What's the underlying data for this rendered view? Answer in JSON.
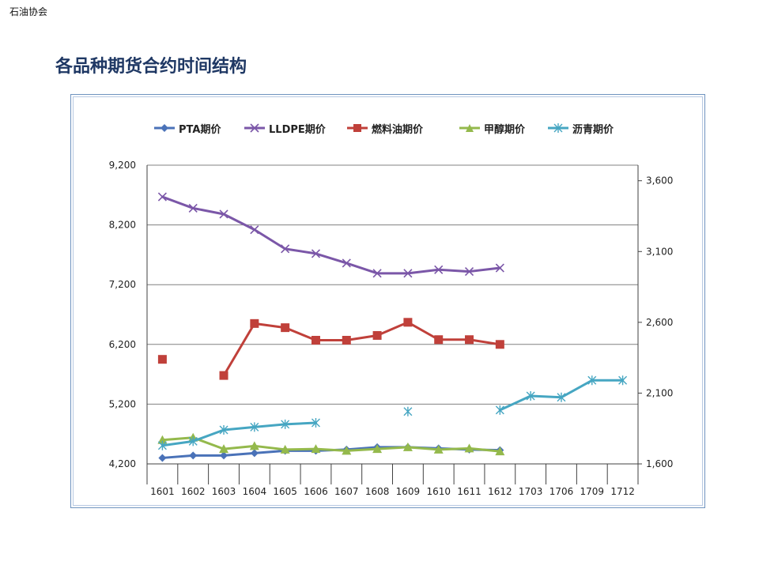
{
  "header": {
    "corner_label": "石油协会"
  },
  "slide": {
    "title": "各品种期货合约时间结构"
  },
  "colors": {
    "pta": "#4a72b8",
    "lldpe": "#7b57a8",
    "fuel_oil": "#c0403a",
    "methanol": "#94b94c",
    "asphalt": "#46a6c2",
    "gridline": "#808080",
    "axis": "#404040"
  },
  "chart_data": {
    "type": "line",
    "categories": [
      "1601",
      "1602",
      "1603",
      "1604",
      "1605",
      "1606",
      "1607",
      "1608",
      "1609",
      "1610",
      "1611",
      "1612",
      "1703",
      "1706",
      "1709",
      "1712"
    ],
    "y_left": {
      "ticks": [
        "4,200",
        "5,200",
        "6,200",
        "7,200",
        "8,200",
        "9,200"
      ],
      "min": 4200,
      "max": 9200,
      "step": 1000
    },
    "y_right": {
      "ticks": [
        "1,600",
        "2,100",
        "2,600",
        "3,100",
        "3,600"
      ],
      "min": 1600,
      "max": 3600,
      "step": 500,
      "display_max": 3710
    },
    "grid": "horizontal",
    "legend_position": "top",
    "series": [
      {
        "key": "pta",
        "name": "PTA期价",
        "axis": "left",
        "marker": "diamond",
        "values": [
          4300,
          4340,
          4340,
          4380,
          4420,
          4420,
          4440,
          4480,
          4480,
          4460,
          4440,
          4430,
          null,
          null,
          null,
          null
        ]
      },
      {
        "key": "lldpe",
        "name": "LLDPE期价",
        "axis": "left",
        "marker": "x",
        "values": [
          8670,
          8480,
          8380,
          8120,
          7800,
          7720,
          7560,
          7390,
          7390,
          7450,
          7420,
          7480,
          null,
          null,
          null,
          null
        ]
      },
      {
        "key": "fuel_oil",
        "name": "燃料油期价",
        "axis": "left",
        "marker": "square",
        "values": [
          5950,
          null,
          5680,
          6550,
          6480,
          6270,
          6270,
          6350,
          6570,
          6280,
          6280,
          6200,
          null,
          null,
          null,
          null
        ]
      },
      {
        "key": "methanol",
        "name": "甲醇期价",
        "axis": "left",
        "marker": "triangle",
        "values": [
          4600,
          4640,
          4450,
          4500,
          4440,
          4450,
          4420,
          4450,
          4480,
          4440,
          4460,
          4410,
          null,
          null,
          null,
          null
        ]
      },
      {
        "key": "asphalt",
        "name": "沥青期价",
        "axis": "right",
        "marker": "asterisk",
        "values": [
          1730,
          1760,
          1840,
          1860,
          1880,
          1890,
          null,
          null,
          1970,
          null,
          null,
          1980,
          2080,
          2070,
          2190,
          2190
        ]
      }
    ]
  }
}
